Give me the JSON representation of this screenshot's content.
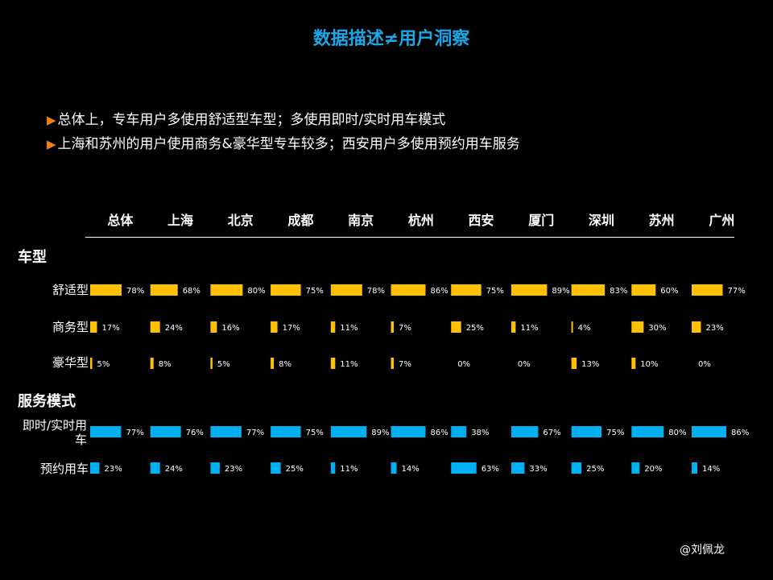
{
  "title": "数据描述≠用户洞察",
  "bullets": [
    "总体上，专车用户多使用舒适型车型；多使用即时/实时用车模式",
    "上海和苏州的用户使用商务&豪华型专车较多；西安用户多使用预约用车服务"
  ],
  "watermark": "@刘佩龙",
  "colors": {
    "car_type": "#FFC000",
    "service": "#00B0F0",
    "title": "#1AA7E8",
    "bullet_arrow": "#F07F1E"
  },
  "chart_data": {
    "type": "bar",
    "categories": [
      "总体",
      "上海",
      "北京",
      "成都",
      "南京",
      "杭州",
      "西安",
      "厦门",
      "深圳",
      "苏州",
      "广州"
    ],
    "groups": [
      {
        "name": "车型",
        "series": [
          {
            "name": "舒适型",
            "values": [
              78,
              68,
              80,
              75,
              78,
              86,
              75,
              89,
              83,
              60,
              77
            ]
          },
          {
            "name": "商务型",
            "values": [
              17,
              24,
              16,
              17,
              11,
              7,
              25,
              11,
              4,
              30,
              23
            ]
          },
          {
            "name": "豪华型",
            "values": [
              5,
              8,
              5,
              8,
              11,
              7,
              0,
              0,
              13,
              10,
              0
            ]
          }
        ]
      },
      {
        "name": "服务模式",
        "series": [
          {
            "name": "即时/实时用车",
            "values": [
              77,
              76,
              77,
              75,
              89,
              86,
              38,
              67,
              75,
              80,
              86
            ]
          },
          {
            "name": "预约用车",
            "values": [
              23,
              24,
              23,
              25,
              11,
              14,
              63,
              33,
              25,
              20,
              14
            ]
          }
        ]
      }
    ],
    "value_suffix": "%"
  }
}
